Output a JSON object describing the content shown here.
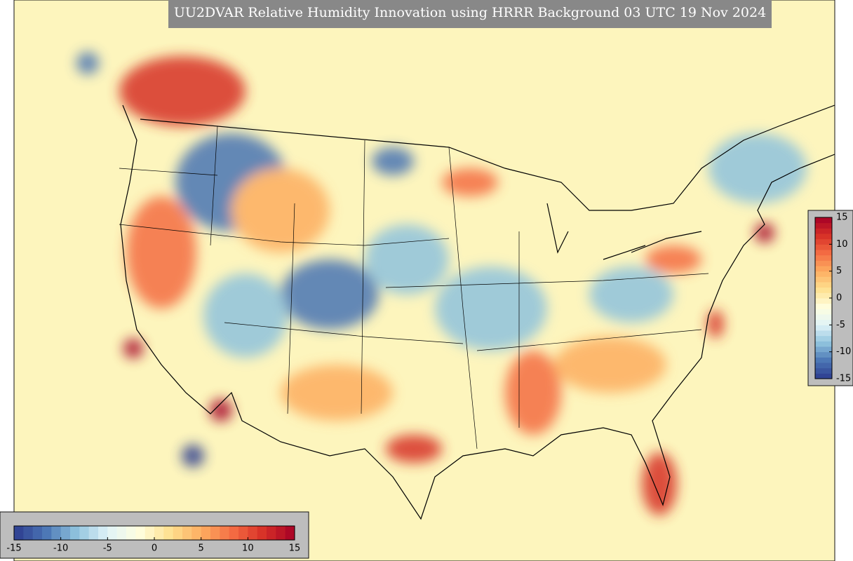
{
  "title": "UU2DVAR Relative Humidity Innovation using HRRR Background 03 UTC 19 Nov 2024",
  "colormap": [
    "#2c3b8e",
    "#4a74b4",
    "#8fc3dd",
    "#e0f3f8",
    "#ffffdf",
    "#fee090",
    "#fdae61",
    "#f46d43",
    "#d73027",
    "#a50026"
  ],
  "colorbars": [
    {
      "orientation": "horizontal",
      "range": [
        -15,
        15
      ],
      "ticks": [
        -15,
        -10,
        -5,
        0,
        5,
        10,
        15
      ]
    },
    {
      "orientation": "vertical",
      "range": [
        -15,
        15
      ],
      "ticks": [
        15,
        10,
        5,
        0,
        -5,
        -10,
        -15
      ]
    }
  ]
}
